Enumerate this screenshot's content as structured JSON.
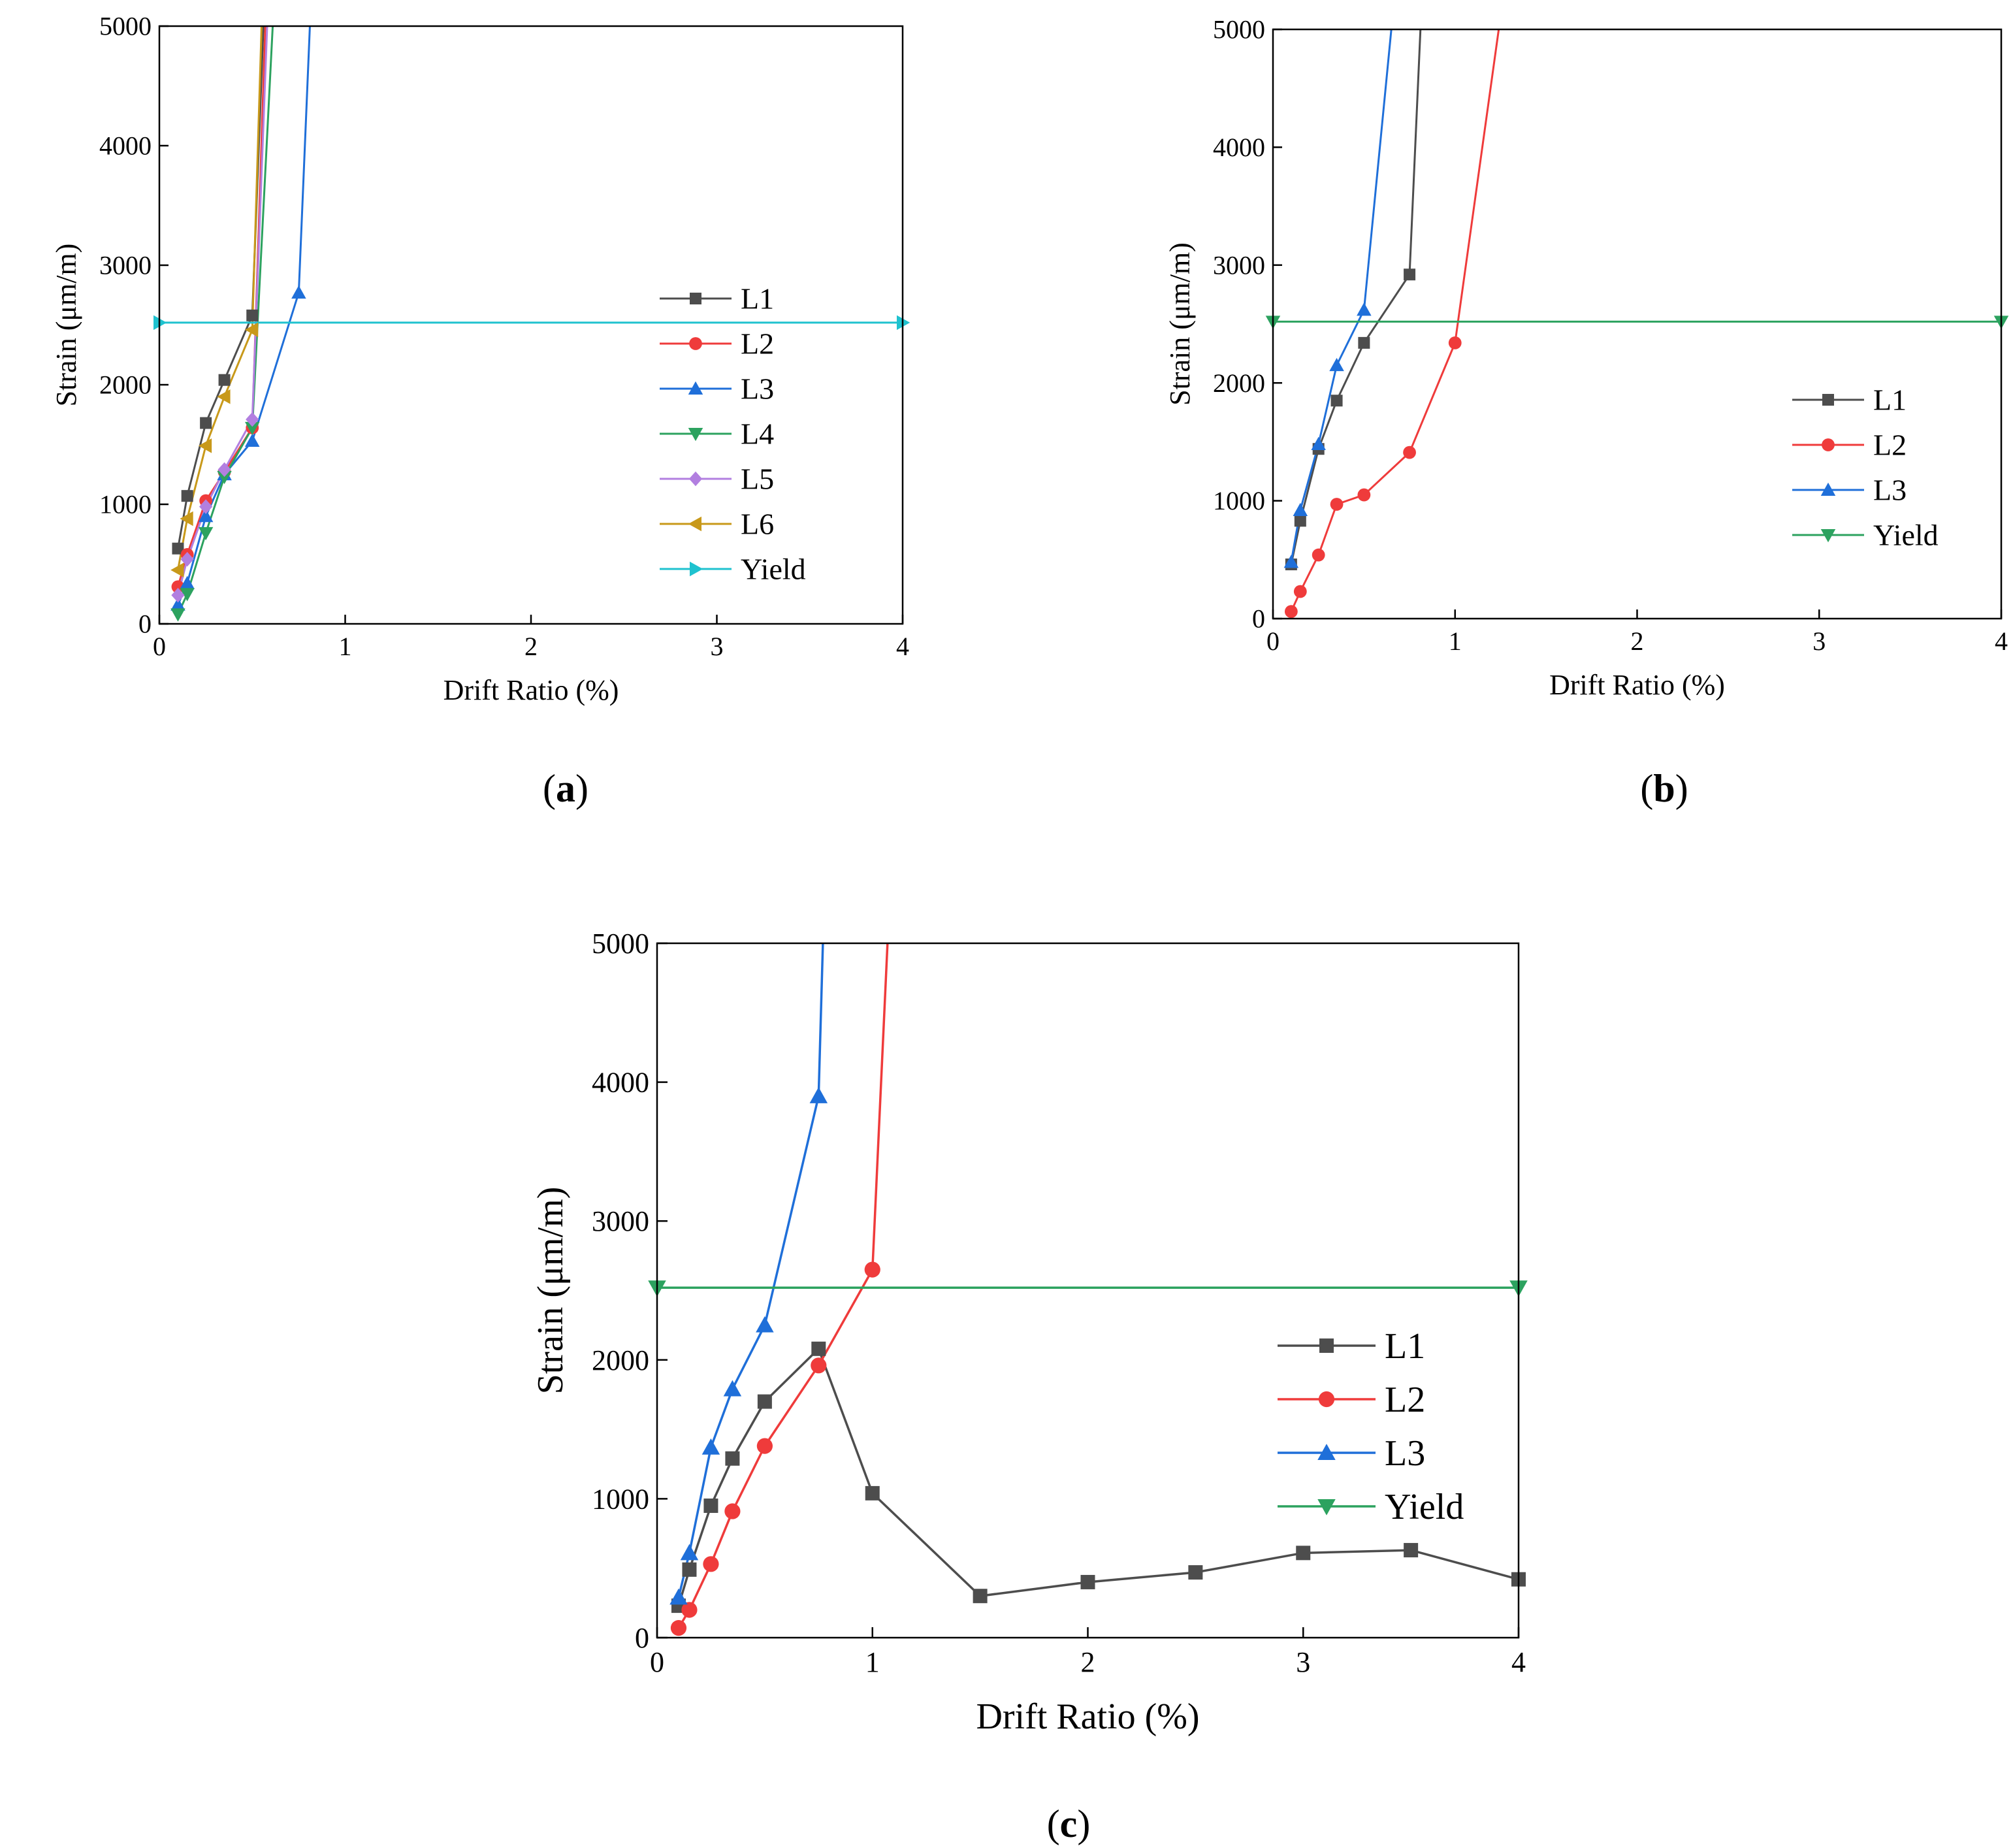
{
  "chart_data": [
    {
      "id": "a",
      "type": "line",
      "panel_label": "(a)",
      "panel_letter": "a",
      "xlabel": "Drift Ratio (%)",
      "ylabel": "Strain (μm/m)",
      "xlim": [
        0,
        4
      ],
      "ylim": [
        0,
        5000
      ],
      "x_ticks": [
        0,
        1,
        2,
        3,
        4
      ],
      "y_ticks": [
        0,
        1000,
        2000,
        3000,
        4000,
        5000
      ],
      "grid": false,
      "legend_position": "center-right",
      "series": [
        {
          "name": "L1",
          "color": "#4d4d4d",
          "marker": "square",
          "points": [
            [
              0.1,
              630
            ],
            [
              0.15,
              1070
            ],
            [
              0.25,
              1680
            ],
            [
              0.35,
              2040
            ],
            [
              0.5,
              2580
            ],
            [
              0.56,
              5000
            ]
          ]
        },
        {
          "name": "L2",
          "color": "#ef3b3b",
          "marker": "circle",
          "points": [
            [
              0.1,
              310
            ],
            [
              0.15,
              580
            ],
            [
              0.25,
              1030
            ],
            [
              0.35,
              1270
            ],
            [
              0.5,
              1640
            ],
            [
              0.57,
              5000
            ]
          ]
        },
        {
          "name": "L3",
          "color": "#1f6fd9",
          "marker": "triangle-up",
          "points": [
            [
              0.1,
              160
            ],
            [
              0.15,
              340
            ],
            [
              0.25,
              900
            ],
            [
              0.35,
              1250
            ],
            [
              0.5,
              1530
            ],
            [
              0.75,
              2770
            ],
            [
              0.81,
              5000
            ]
          ]
        },
        {
          "name": "L4",
          "color": "#2ca25f",
          "marker": "triangle-down",
          "points": [
            [
              0.1,
              80
            ],
            [
              0.15,
              250
            ],
            [
              0.25,
              760
            ],
            [
              0.35,
              1230
            ],
            [
              0.5,
              1640
            ],
            [
              0.61,
              5000
            ]
          ]
        },
        {
          "name": "L5",
          "color": "#b27fe0",
          "marker": "diamond",
          "points": [
            [
              0.1,
              240
            ],
            [
              0.15,
              540
            ],
            [
              0.25,
              980
            ],
            [
              0.35,
              1290
            ],
            [
              0.5,
              1710
            ],
            [
              0.58,
              5000
            ]
          ]
        },
        {
          "name": "L6",
          "color": "#c8991a",
          "marker": "triangle-left",
          "points": [
            [
              0.1,
              450
            ],
            [
              0.15,
              880
            ],
            [
              0.25,
              1490
            ],
            [
              0.35,
              1900
            ],
            [
              0.5,
              2460
            ],
            [
              0.55,
              5000
            ]
          ]
        },
        {
          "name": "Yield",
          "color": "#1fc2cf",
          "marker": "triangle-right",
          "points": [
            [
              0,
              2520
            ],
            [
              4,
              2520
            ]
          ],
          "markers_at": [
            0,
            1
          ]
        }
      ]
    },
    {
      "id": "b",
      "type": "line",
      "panel_label": "(b)",
      "panel_letter": "b",
      "xlabel": "Drift Ratio (%)",
      "ylabel": "Strain (μm/m)",
      "xlim": [
        0,
        4
      ],
      "ylim": [
        0,
        5000
      ],
      "x_ticks": [
        0,
        1,
        2,
        3,
        4
      ],
      "y_ticks": [
        0,
        1000,
        2000,
        3000,
        4000,
        5000
      ],
      "grid": false,
      "legend_position": "center-right",
      "series": [
        {
          "name": "L1",
          "color": "#4d4d4d",
          "marker": "square",
          "points": [
            [
              0.1,
              460
            ],
            [
              0.15,
              830
            ],
            [
              0.25,
              1440
            ],
            [
              0.35,
              1850
            ],
            [
              0.5,
              2340
            ],
            [
              0.75,
              2920
            ],
            [
              0.81,
              5000
            ]
          ]
        },
        {
          "name": "L2",
          "color": "#ef3b3b",
          "marker": "circle",
          "points": [
            [
              0.1,
              60
            ],
            [
              0.15,
              230
            ],
            [
              0.25,
              540
            ],
            [
              0.35,
              970
            ],
            [
              0.5,
              1050
            ],
            [
              0.75,
              1410
            ],
            [
              1.0,
              2340
            ],
            [
              1.24,
              5000
            ]
          ]
        },
        {
          "name": "L3",
          "color": "#1f6fd9",
          "marker": "triangle-up",
          "points": [
            [
              0.1,
              480
            ],
            [
              0.15,
              920
            ],
            [
              0.25,
              1480
            ],
            [
              0.35,
              2150
            ],
            [
              0.5,
              2620
            ],
            [
              0.65,
              5000
            ]
          ]
        },
        {
          "name": "Yield",
          "color": "#2ca25f",
          "marker": "triangle-down",
          "points": [
            [
              0,
              2520
            ],
            [
              4,
              2520
            ]
          ],
          "markers_at": [
            0,
            1
          ]
        }
      ]
    },
    {
      "id": "c",
      "type": "line",
      "panel_label": "(c)",
      "panel_letter": "c",
      "xlabel": "Drift Ratio (%)",
      "ylabel": "Strain (μm/m)",
      "xlim": [
        0,
        4
      ],
      "ylim": [
        0,
        5000
      ],
      "x_ticks": [
        0,
        1,
        2,
        3,
        4
      ],
      "y_ticks": [
        0,
        1000,
        2000,
        3000,
        4000,
        5000
      ],
      "grid": false,
      "legend_position": "center-right",
      "series": [
        {
          "name": "L1",
          "color": "#4d4d4d",
          "marker": "square",
          "points": [
            [
              0.1,
              230
            ],
            [
              0.15,
              490
            ],
            [
              0.25,
              950
            ],
            [
              0.35,
              1290
            ],
            [
              0.5,
              1700
            ],
            [
              0.75,
              2080
            ],
            [
              1.0,
              1040
            ],
            [
              1.5,
              300
            ],
            [
              2.0,
              400
            ],
            [
              2.5,
              470
            ],
            [
              3.0,
              610
            ],
            [
              3.5,
              630
            ],
            [
              4.0,
              420
            ]
          ]
        },
        {
          "name": "L2",
          "color": "#ef3b3b",
          "marker": "circle",
          "points": [
            [
              0.1,
              70
            ],
            [
              0.15,
              200
            ],
            [
              0.25,
              530
            ],
            [
              0.35,
              910
            ],
            [
              0.5,
              1380
            ],
            [
              0.75,
              1960
            ],
            [
              1.0,
              2650
            ],
            [
              1.07,
              5000
            ]
          ]
        },
        {
          "name": "L3",
          "color": "#1f6fd9",
          "marker": "triangle-up",
          "points": [
            [
              0.1,
              290
            ],
            [
              0.15,
              610
            ],
            [
              0.25,
              1370
            ],
            [
              0.35,
              1790
            ],
            [
              0.5,
              2250
            ],
            [
              0.75,
              3900
            ],
            [
              0.77,
              5000
            ]
          ]
        },
        {
          "name": "Yield",
          "color": "#2ca25f",
          "marker": "triangle-down",
          "points": [
            [
              0,
              2520
            ],
            [
              4,
              2520
            ]
          ],
          "markers_at": [
            0,
            1
          ]
        }
      ]
    }
  ]
}
